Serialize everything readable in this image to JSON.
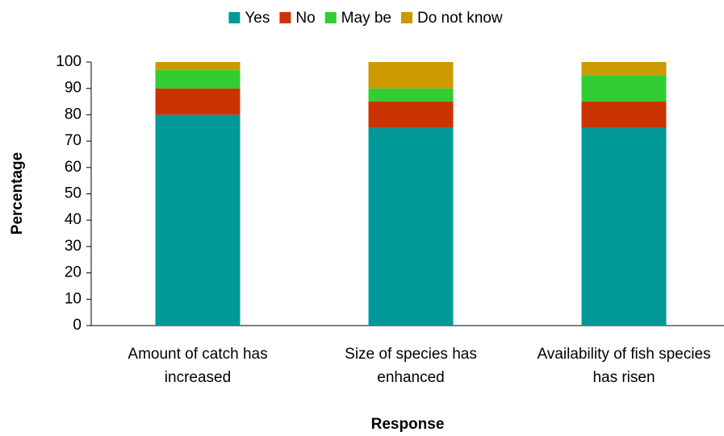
{
  "chart_data": {
    "type": "stacked_bar",
    "x_label": "Response",
    "y_label": "Percentage",
    "categories": [
      "Amount of catch has increased",
      "Size of species has enhanced",
      "Availability of fish species has risen"
    ],
    "series": [
      {
        "name": "Yes",
        "color": "#009999",
        "values": [
          80,
          75,
          75
        ]
      },
      {
        "name": "No",
        "color": "#cc3300",
        "values": [
          10,
          10,
          10
        ]
      },
      {
        "name": "May be",
        "color": "#33cc33",
        "values": [
          7,
          5,
          10
        ]
      },
      {
        "name": "Do not know",
        "color": "#cc9900",
        "values": [
          3,
          10,
          5
        ]
      }
    ],
    "ylim": [
      0,
      100
    ],
    "yticks": [
      0,
      10,
      20,
      30,
      40,
      50,
      60,
      70,
      80,
      90,
      100
    ],
    "legend": "top",
    "grid": false
  }
}
